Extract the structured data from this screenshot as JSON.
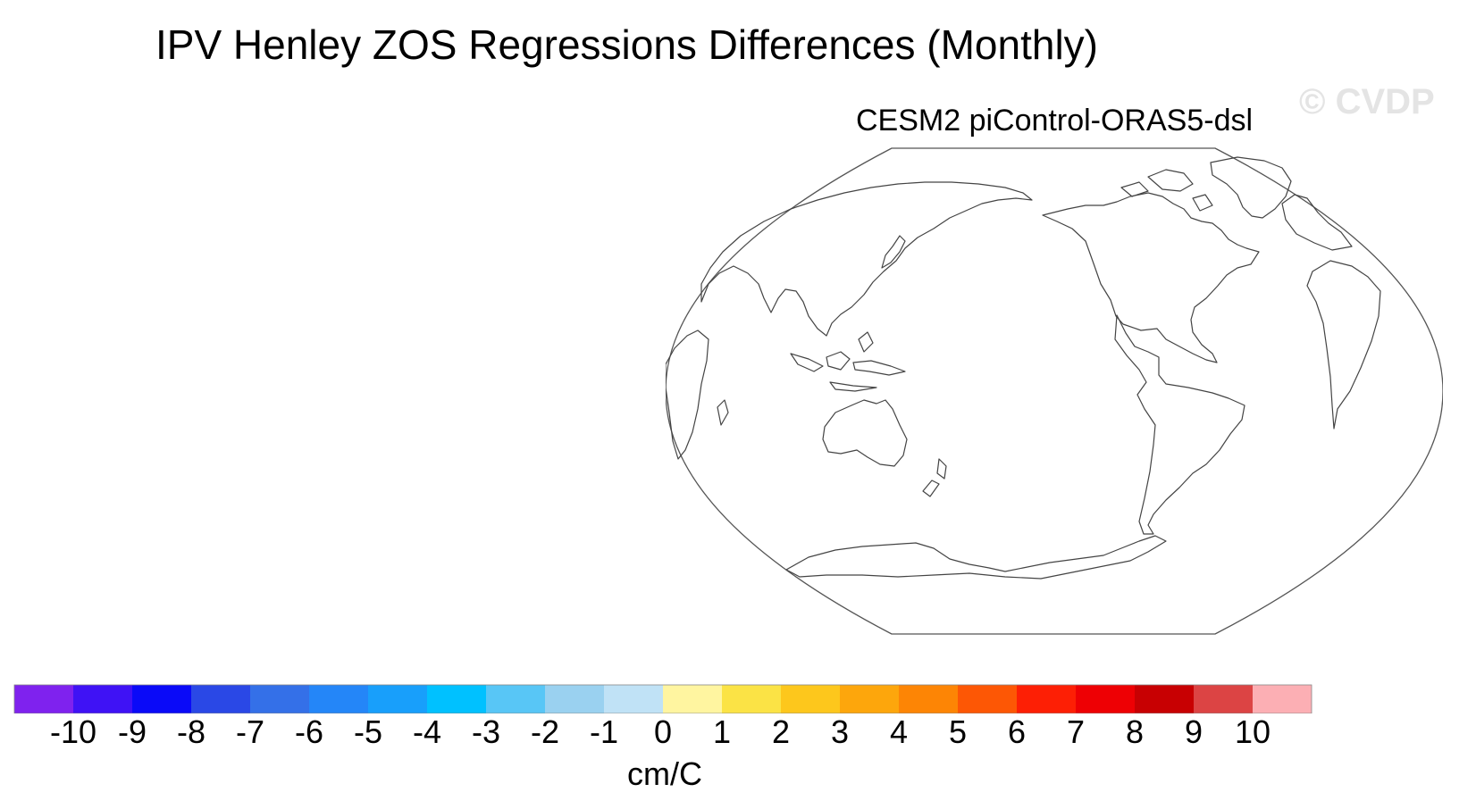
{
  "title": "IPV Henley ZOS Regressions Differences (Monthly)",
  "watermark": "© CVDP",
  "panel": {
    "title": "CESM2 piControl-ORAS5-dsl",
    "map_projection": "robinson-like global, Pacific-centered",
    "land_fill": "#ffffff",
    "coastline_color": "#555555"
  },
  "colorbar": {
    "units": "cm/C",
    "labels": [
      "-10",
      "-9",
      "-8",
      "-7",
      "-6",
      "-5",
      "-4",
      "-3",
      "-2",
      "-1",
      "0",
      "1",
      "2",
      "3",
      "4",
      "5",
      "6",
      "7",
      "8",
      "9",
      "10"
    ],
    "colors": [
      "#7f22ee",
      "#3f12f5",
      "#0a0af8",
      "#2a48e6",
      "#3470e8",
      "#2486f8",
      "#189ffb",
      "#00c1ff",
      "#58c6f6",
      "#9ad1f0",
      "#c0e2f6",
      "#fff5a0",
      "#fbe345",
      "#fdc71c",
      "#fda60c",
      "#fd8505",
      "#fd5705",
      "#fd1f05",
      "#ee0004",
      "#c80002",
      "#dc4444",
      "#fcafb4"
    ]
  }
}
